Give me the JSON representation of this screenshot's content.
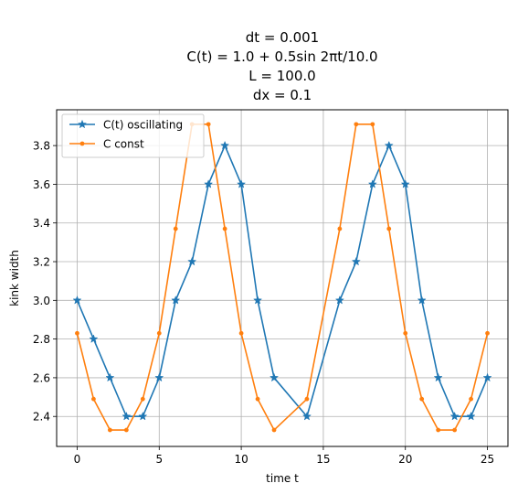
{
  "chart_data": {
    "type": "line",
    "title_lines": [
      "dt = 0.001",
      "C(t) = 1.0 + 0.5sin 2πt/10.0",
      "L = 100.0",
      "dx = 0.1"
    ],
    "xlabel": "time t",
    "ylabel": "kink width",
    "xlim": [
      -1.25,
      26.25
    ],
    "ylim": [
      2.245,
      3.985
    ],
    "xticks": [
      0,
      5,
      10,
      15,
      20,
      25
    ],
    "yticks": [
      2.4,
      2.6,
      2.8,
      3.0,
      3.2,
      3.4,
      3.6,
      3.8
    ],
    "xtick_labels": [
      "0",
      "5",
      "10",
      "15",
      "20",
      "25"
    ],
    "ytick_labels": [
      "2.4",
      "2.6",
      "2.8",
      "3.0",
      "3.2",
      "3.4",
      "3.6",
      "3.8"
    ],
    "grid": true,
    "legend_position": "top-left",
    "series": [
      {
        "name": "C(t) oscillating",
        "color": "#1f77b4",
        "marker": "star",
        "x": [
          0,
          1,
          2,
          3,
          4,
          5,
          6,
          7,
          8,
          9,
          10,
          11,
          12,
          14,
          16,
          17,
          18,
          19,
          20,
          21,
          22,
          23,
          24,
          25
        ],
        "y": [
          3.0,
          2.8,
          2.6,
          2.4,
          2.4,
          2.6,
          3.0,
          3.2,
          3.6,
          3.8,
          3.6,
          3.0,
          2.6,
          2.4,
          3.0,
          3.2,
          3.6,
          3.8,
          3.6,
          3.0,
          2.6,
          2.4,
          2.4,
          2.6
        ]
      },
      {
        "name": "C const",
        "color": "#ff7f0e",
        "marker": "dot",
        "x": [
          0,
          1,
          2,
          3,
          4,
          5,
          6,
          7,
          8,
          9,
          10,
          11,
          12,
          14,
          16,
          17,
          18,
          19,
          20,
          21,
          22,
          23,
          24,
          25
        ],
        "y": [
          2.83,
          2.49,
          2.33,
          2.33,
          2.49,
          2.83,
          3.37,
          3.91,
          3.91,
          3.37,
          2.83,
          2.49,
          2.33,
          2.49,
          3.37,
          3.91,
          3.91,
          3.37,
          2.83,
          2.49,
          2.33,
          2.33,
          2.49,
          2.83
        ]
      }
    ]
  }
}
